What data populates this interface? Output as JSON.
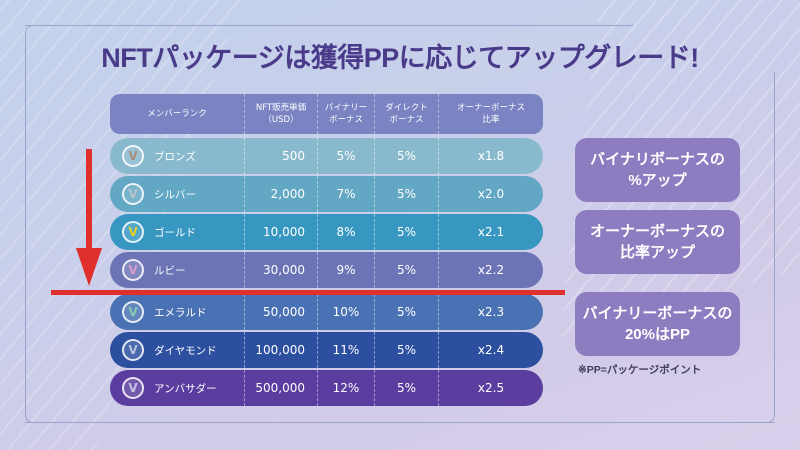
{
  "title": "NFTパッケージは獲得PPに応じてアップグレード!",
  "table": {
    "headers": {
      "rank": "メンバーランク",
      "price_line1": "NFT販売単価",
      "price_line2": "（USD）",
      "binary_line1": "バイナリー",
      "binary_line2": "ボーナス",
      "direct_line1": "ダイレクト",
      "direct_line2": "ボーナス",
      "owner_line1": "オーナーボーナス",
      "owner_line2": "比率"
    },
    "rows": [
      {
        "rank": "ブロンズ",
        "price": "500",
        "binary": "5%",
        "direct": "5%",
        "owner": "x1.8",
        "color": "#88b9cd",
        "badge_icon": "bronze-medal-icon",
        "badge_color": "#a88b7a",
        "glyph": "V"
      },
      {
        "rank": "シルバー",
        "price": "2,000",
        "binary": "7%",
        "direct": "5%",
        "owner": "x2.0",
        "color": "#62a7c3",
        "badge_icon": "silver-medal-icon",
        "badge_color": "#b8c3cc",
        "glyph": "V"
      },
      {
        "rank": "ゴールド",
        "price": "10,000",
        "binary": "8%",
        "direct": "5%",
        "owner": "x2.1",
        "color": "#3797c1",
        "badge_icon": "gold-medal-icon",
        "badge_color": "#e4d12a",
        "glyph": "V"
      },
      {
        "rank": "ルビー",
        "price": "30,000",
        "binary": "9%",
        "direct": "5%",
        "owner": "x2.2",
        "color": "#6d74b6",
        "badge_icon": "ruby-medal-icon",
        "badge_color": "#d99ad0",
        "glyph": "V"
      },
      {
        "rank": "エメラルド",
        "price": "50,000",
        "binary": "10%",
        "direct": "5%",
        "owner": "x2.3",
        "color": "#4a71b3",
        "badge_icon": "emerald-medal-icon",
        "badge_color": "#88cbb3",
        "glyph": "V"
      },
      {
        "rank": "ダイヤモンド",
        "price": "100,000",
        "binary": "11%",
        "direct": "5%",
        "owner": "x2.4",
        "color": "#2c4f9f",
        "badge_icon": "diamond-medal-icon",
        "badge_color": "#b7c3dd",
        "glyph": "V"
      },
      {
        "rank": "アンバサダー",
        "price": "500,000",
        "binary": "12%",
        "direct": "5%",
        "owner": "x2.5",
        "color": "#5a3d9e",
        "badge_icon": "ambassador-medal-icon",
        "badge_color": "#c7c2e8",
        "glyph": "V"
      }
    ]
  },
  "callouts": [
    {
      "line1": "バイナリボーナスの",
      "line2": "%アップ"
    },
    {
      "line1": "オーナーボーナスの",
      "line2": "比率アップ"
    },
    {
      "line1": "バイナリーボーナスの",
      "line2": "20%はPP"
    }
  ],
  "footnote": "※PP=パッケージポイント",
  "colors": {
    "accent_red": "#e0302e",
    "title": "#4a3a8a",
    "header": "#7b83c3",
    "callout": "#8d7cc0"
  }
}
